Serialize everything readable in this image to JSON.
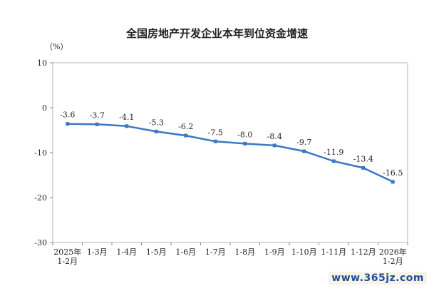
{
  "chart_data": {
    "type": "line",
    "title": "全国房地产开发企业本年到位资金增速",
    "ylabel": "（%）",
    "ylim": [
      -30,
      10
    ],
    "yticks": [
      10,
      0,
      -10,
      -20,
      -30
    ],
    "categories": [
      "2025年\n1-2月",
      "1-3月",
      "1-4月",
      "1-5月",
      "1-6月",
      "1-7月",
      "1-8月",
      "1-9月",
      "1-10月",
      "1-11月",
      "1-12月",
      "2026年\n1-2月"
    ],
    "series": [
      {
        "values": [
          -3.6,
          -3.7,
          -4.1,
          -5.3,
          -6.2,
          -7.5,
          -8.0,
          -8.4,
          -9.7,
          -11.9,
          -13.4,
          -16.5
        ],
        "labels": [
          "-3.6",
          "-3.7",
          "-4.1",
          "-5.3",
          "-6.2",
          "-7.5",
          "-8.0",
          "-8.4",
          "-9.7",
          "-11.9",
          "-13.4",
          "-16.5"
        ],
        "color": "#3a78c3"
      }
    ],
    "grid": false,
    "legend": "none"
  },
  "watermark": "www.365jz.com"
}
